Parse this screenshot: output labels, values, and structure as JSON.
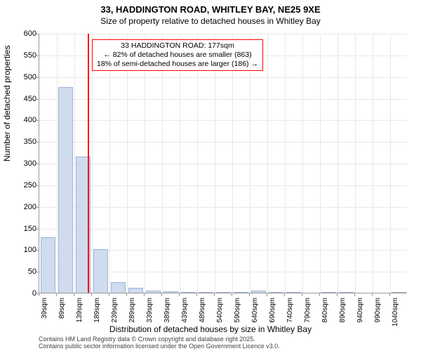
{
  "chart": {
    "type": "histogram",
    "title": "33, HADDINGTON ROAD, WHITLEY BAY, NE25 9XE",
    "subtitle": "Size of property relative to detached houses in Whitley Bay",
    "ylabel": "Number of detached properties",
    "xlabel": "Distribution of detached houses by size in Whitley Bay",
    "footer_line1": "Contains HM Land Registry data © Crown copyright and database right 2025.",
    "footer_line2": "Contains public sector information licensed under the Open Government Licence v3.0.",
    "ylim": [
      0,
      600
    ],
    "ytick_step": 50,
    "bar_color": "#cfdbef",
    "bar_border": "#9db3d8",
    "marker_color": "#ff0000",
    "marker_value": 177,
    "background_color": "#ffffff",
    "grid_color": "#e8e8e8",
    "axis_color": "#999999",
    "title_fontsize": 13,
    "label_fontsize": 12,
    "tick_fontsize": 11,
    "annotation_border": "#ff0000",
    "annotation": {
      "line1": "33 HADDINGTON ROAD: 177sqm",
      "line2": "← 82% of detached houses are smaller (863)",
      "line3": "18% of semi-detached houses are larger (186) →"
    },
    "categories": [
      "39sqm",
      "89sqm",
      "139sqm",
      "189sqm",
      "239sqm",
      "289sqm",
      "339sqm",
      "389sqm",
      "439sqm",
      "489sqm",
      "540sqm",
      "590sqm",
      "640sqm",
      "690sqm",
      "740sqm",
      "790sqm",
      "840sqm",
      "890sqm",
      "940sqm",
      "990sqm",
      "1040sqm"
    ],
    "values": [
      128,
      475,
      315,
      100,
      25,
      12,
      5,
      3,
      2,
      2.3,
      2,
      2.3,
      5,
      2,
      2,
      0,
      2.3,
      2.3,
      0,
      0,
      2
    ]
  }
}
